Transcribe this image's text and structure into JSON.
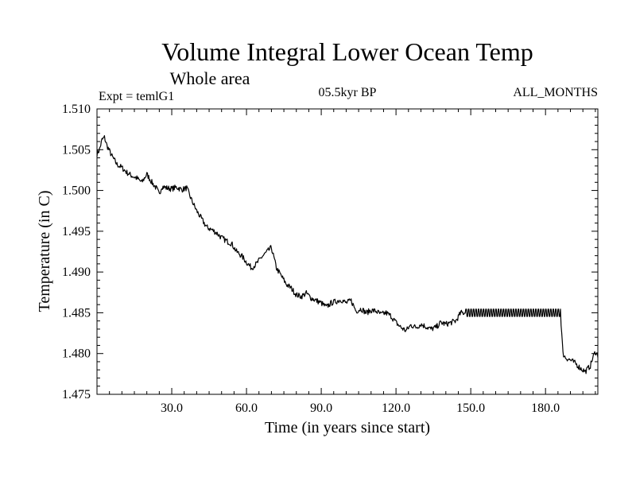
{
  "chart_data": {
    "type": "line",
    "title": "Volume Integral Lower Ocean Temp",
    "subtitle": "Whole area",
    "left_note": "Expt = temlG1",
    "center_note": "05.5kyr BP",
    "right_note": "ALL_MONTHS",
    "xlabel": "Time (in years since start)",
    "ylabel": "Temperature (in C)",
    "xlim": [
      0,
      201
    ],
    "ylim": [
      1.475,
      1.51
    ],
    "x_ticks": [
      30,
      60,
      90,
      120,
      150,
      180
    ],
    "x_tick_labels": [
      "30.0",
      "60.0",
      "90.0",
      "120.0",
      "150.0",
      "180.0"
    ],
    "y_ticks": [
      1.475,
      1.48,
      1.485,
      1.49,
      1.495,
      1.5,
      1.505,
      1.51
    ],
    "y_tick_labels": [
      "1.475",
      "1.480",
      "1.485",
      "1.490",
      "1.495",
      "1.500",
      "1.505",
      "1.510"
    ],
    "grid": false,
    "series": [
      {
        "name": "Temperature",
        "color": "#000000",
        "x": [
          0,
          1,
          2,
          3,
          4,
          6,
          8,
          10,
          12,
          14,
          16,
          18,
          20,
          22,
          24,
          25,
          26,
          28,
          30,
          32,
          34,
          36,
          38,
          40,
          42,
          44,
          46,
          48,
          50,
          52,
          54,
          56,
          58,
          60,
          62,
          64,
          66,
          68,
          70,
          72,
          74,
          76,
          78,
          80,
          82,
          84,
          86,
          88,
          90,
          92,
          94,
          96,
          98,
          100,
          102,
          104,
          106,
          108,
          110,
          112,
          114,
          116,
          118,
          120,
          122,
          124,
          126,
          128,
          130,
          132,
          134,
          136,
          138,
          140,
          142,
          144,
          146,
          148,
          150,
          160,
          170,
          180,
          186,
          187,
          188,
          190,
          192,
          194,
          196,
          198,
          199,
          200,
          201
        ],
        "values": [
          1.5045,
          1.505,
          1.5062,
          1.5065,
          1.5055,
          1.5042,
          1.5032,
          1.5028,
          1.5022,
          1.5018,
          1.5015,
          1.501,
          1.502,
          1.501,
          1.5002,
          1.4995,
          1.5005,
          1.5003,
          1.5002,
          1.5004,
          1.5001,
          1.5003,
          1.4988,
          1.4975,
          1.4965,
          1.4955,
          1.4952,
          1.4948,
          1.4942,
          1.4938,
          1.4935,
          1.4925,
          1.492,
          1.4912,
          1.4905,
          1.491,
          1.4918,
          1.4924,
          1.493,
          1.4905,
          1.4895,
          1.4885,
          1.488,
          1.4872,
          1.487,
          1.4874,
          1.4868,
          1.4865,
          1.4862,
          1.4857,
          1.4862,
          1.4864,
          1.4866,
          1.4862,
          1.4865,
          1.4852,
          1.4855,
          1.485,
          1.4853,
          1.4852,
          1.4848,
          1.485,
          1.4846,
          1.4838,
          1.4832,
          1.4828,
          1.4835,
          1.4832,
          1.4836,
          1.4833,
          1.483,
          1.4832,
          1.4838,
          1.4836,
          1.4838,
          1.484,
          1.485,
          1.485,
          1.485,
          1.485,
          1.485,
          1.485,
          1.485,
          1.48,
          1.4795,
          1.4792,
          1.4788,
          1.4782,
          1.4778,
          1.4785,
          1.4795,
          1.4802,
          1.4798
        ]
      }
    ]
  }
}
